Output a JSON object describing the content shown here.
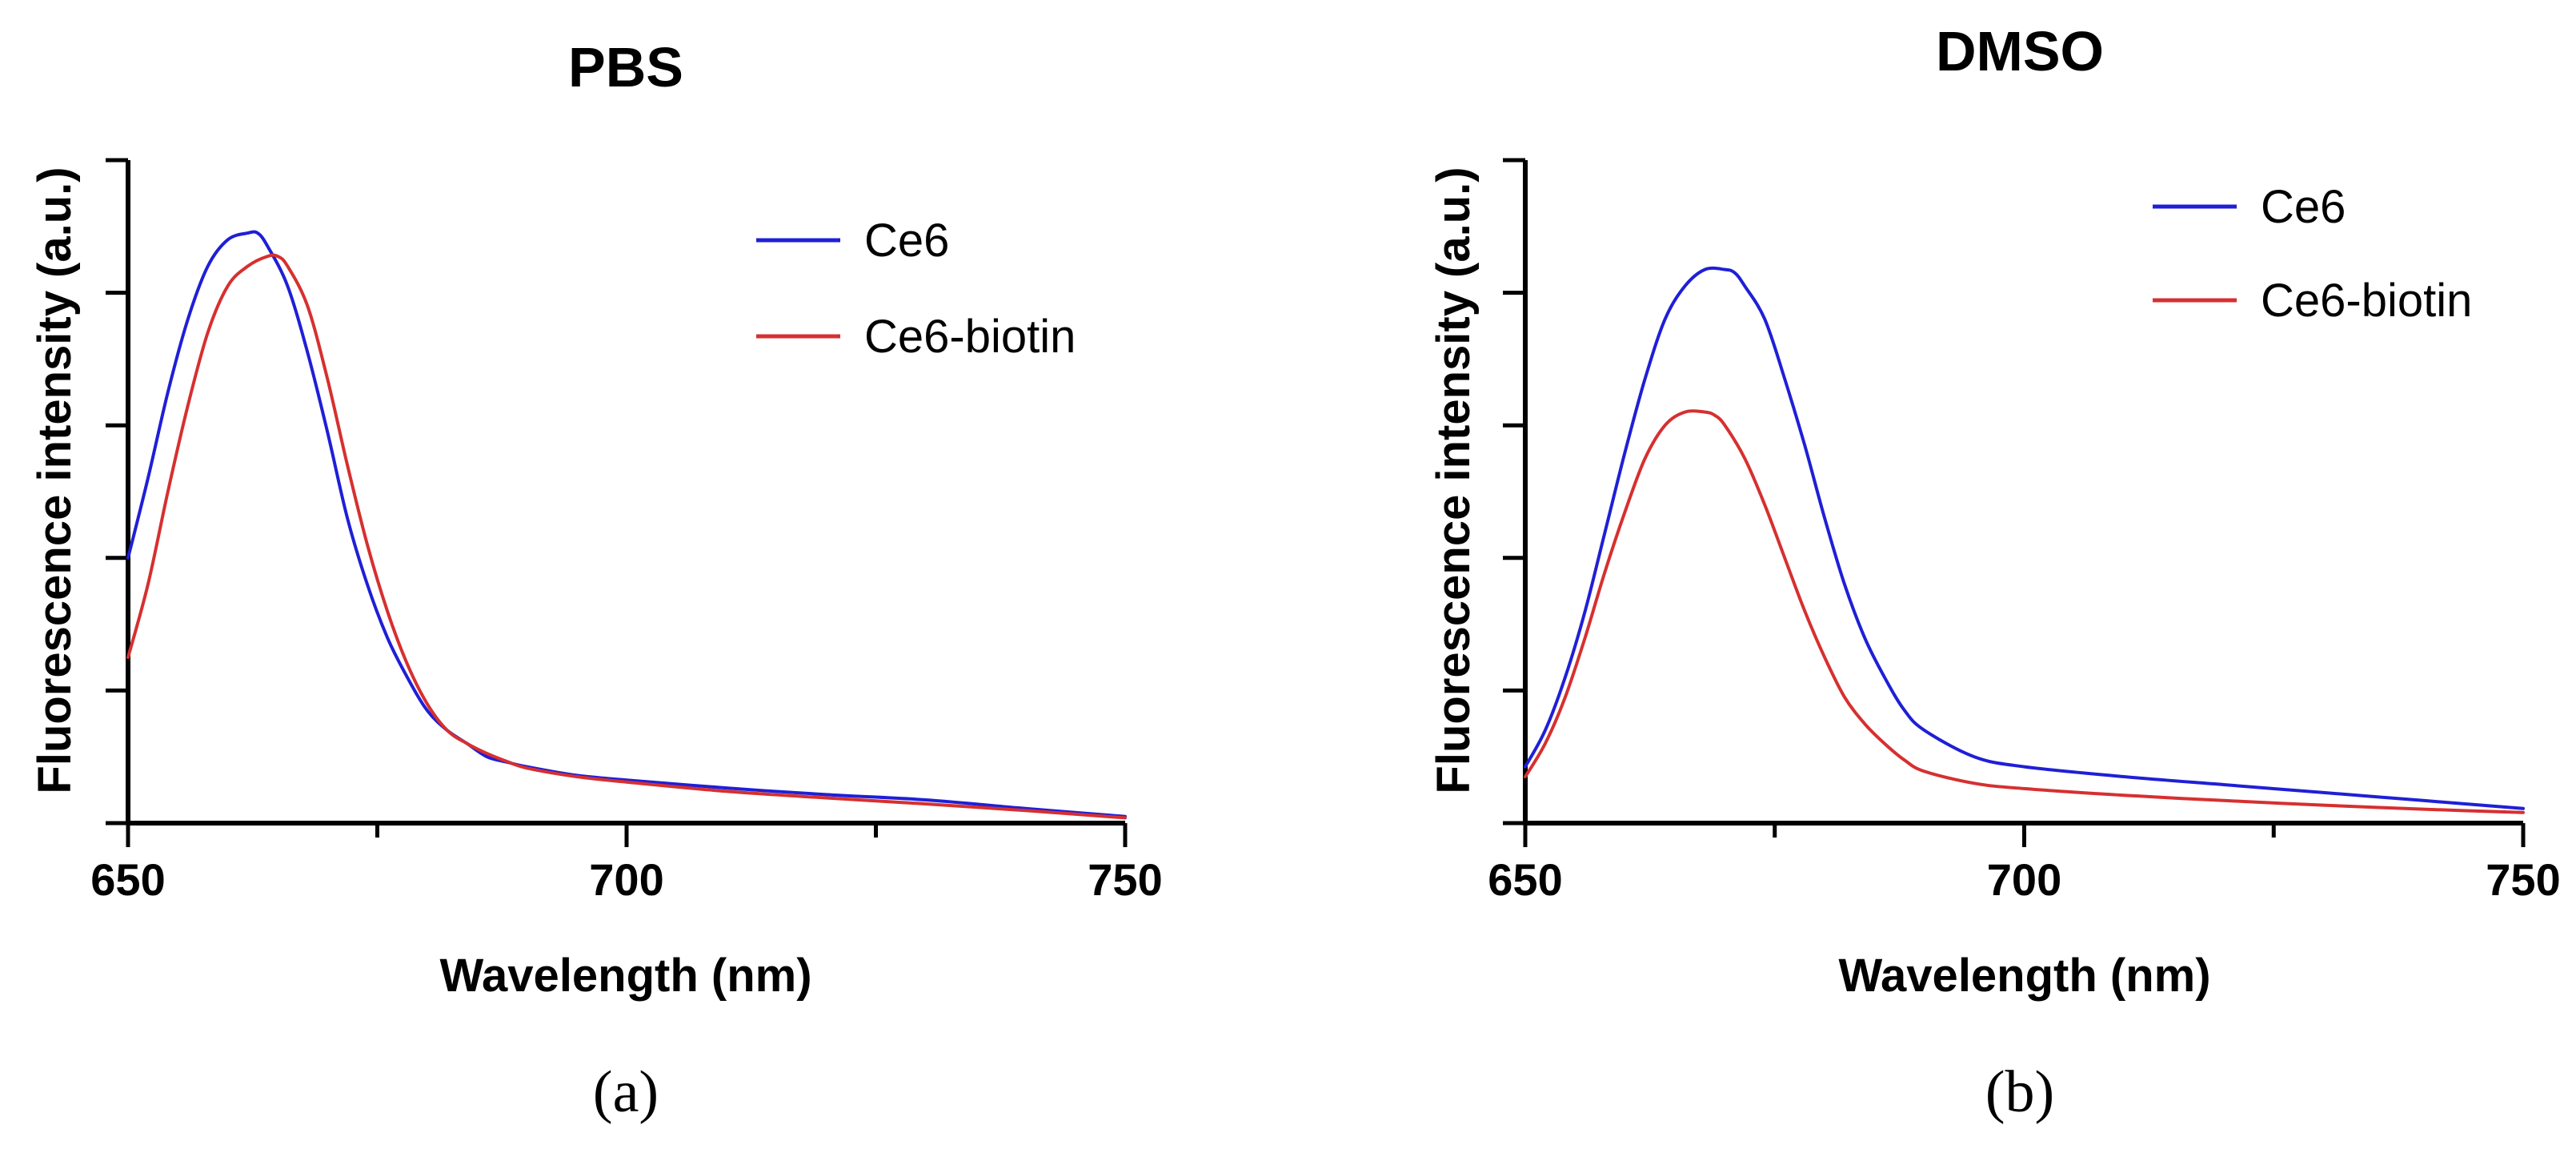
{
  "colors": {
    "ce6": "#1f1fd6",
    "ce6_biotin": "#d63030"
  },
  "chart_data": [
    {
      "type": "line",
      "title": "PBS",
      "xlabel": "Wavelength (nm)",
      "ylabel": "Fluorescence intensity  (a.u.)",
      "xlim": [
        650,
        750
      ],
      "ylim": [
        0,
        1
      ],
      "x_ticks": [
        650,
        700,
        750
      ],
      "x_tick_labels": [
        "650",
        "700",
        "750"
      ],
      "x_minor_ticks": [
        675,
        725
      ],
      "y_tick_count": 5,
      "y_tick_labels": false,
      "legend_position": "top-right",
      "caption": "(a)",
      "series": [
        {
          "name": "Ce6",
          "color": "#1f1fd6",
          "x": [
            650,
            652,
            654,
            656,
            658,
            660,
            662,
            663,
            664,
            666,
            668,
            670,
            672,
            674,
            676,
            678,
            680,
            682,
            684,
            686,
            688,
            690,
            695,
            700,
            710,
            720,
            730,
            740,
            750
          ],
          "y": [
            0.4,
            0.52,
            0.65,
            0.76,
            0.84,
            0.88,
            0.89,
            0.89,
            0.87,
            0.81,
            0.71,
            0.59,
            0.46,
            0.36,
            0.28,
            0.22,
            0.17,
            0.14,
            0.12,
            0.1,
            0.092,
            0.085,
            0.072,
            0.065,
            0.053,
            0.043,
            0.035,
            0.022,
            0.01
          ]
        },
        {
          "name": "Ce6-biotin",
          "color": "#d63030",
          "x": [
            650,
            652,
            654,
            656,
            658,
            660,
            662,
            664,
            665,
            666,
            668,
            670,
            672,
            674,
            676,
            678,
            680,
            682,
            684,
            686,
            688,
            690,
            695,
            700,
            710,
            720,
            730,
            740,
            750
          ],
          "y": [
            0.25,
            0.36,
            0.5,
            0.63,
            0.74,
            0.81,
            0.84,
            0.855,
            0.855,
            0.84,
            0.78,
            0.67,
            0.54,
            0.42,
            0.32,
            0.24,
            0.18,
            0.14,
            0.12,
            0.105,
            0.093,
            0.083,
            0.07,
            0.062,
            0.048,
            0.038,
            0.029,
            0.019,
            0.008
          ]
        }
      ]
    },
    {
      "type": "line",
      "title": "DMSO",
      "xlabel": "Wavelength (nm)",
      "ylabel": "Fluorescence intensity  (a.u.)",
      "xlim": [
        650,
        750
      ],
      "ylim": [
        0,
        1
      ],
      "x_ticks": [
        650,
        700,
        750
      ],
      "x_tick_labels": [
        "650",
        "700",
        "750"
      ],
      "x_minor_ticks": [
        675,
        725
      ],
      "y_tick_count": 5,
      "y_tick_labels": false,
      "legend_position": "top-right",
      "caption": "(b)",
      "series": [
        {
          "name": "Ce6",
          "color": "#1f1fd6",
          "x": [
            650,
            652,
            654,
            656,
            658,
            660,
            662,
            664,
            666,
            668,
            670,
            671,
            672,
            674,
            676,
            678,
            680,
            682,
            684,
            686,
            688,
            690,
            695,
            700,
            710,
            720,
            730,
            740,
            750
          ],
          "y": [
            0.085,
            0.14,
            0.22,
            0.32,
            0.44,
            0.56,
            0.67,
            0.76,
            0.81,
            0.835,
            0.835,
            0.83,
            0.81,
            0.76,
            0.67,
            0.57,
            0.46,
            0.36,
            0.28,
            0.22,
            0.17,
            0.14,
            0.1,
            0.085,
            0.07,
            0.058,
            0.046,
            0.034,
            0.022
          ]
        },
        {
          "name": "Ce6-biotin",
          "color": "#d63030",
          "x": [
            650,
            652,
            654,
            656,
            658,
            660,
            662,
            664,
            666,
            668,
            669,
            670,
            672,
            674,
            676,
            678,
            680,
            682,
            684,
            686,
            688,
            690,
            695,
            700,
            710,
            720,
            730,
            740,
            750
          ],
          "y": [
            0.07,
            0.12,
            0.19,
            0.28,
            0.38,
            0.47,
            0.55,
            0.6,
            0.62,
            0.62,
            0.615,
            0.6,
            0.55,
            0.48,
            0.4,
            0.32,
            0.25,
            0.19,
            0.15,
            0.12,
            0.095,
            0.078,
            0.06,
            0.052,
            0.042,
            0.034,
            0.027,
            0.021,
            0.016
          ]
        }
      ]
    }
  ]
}
